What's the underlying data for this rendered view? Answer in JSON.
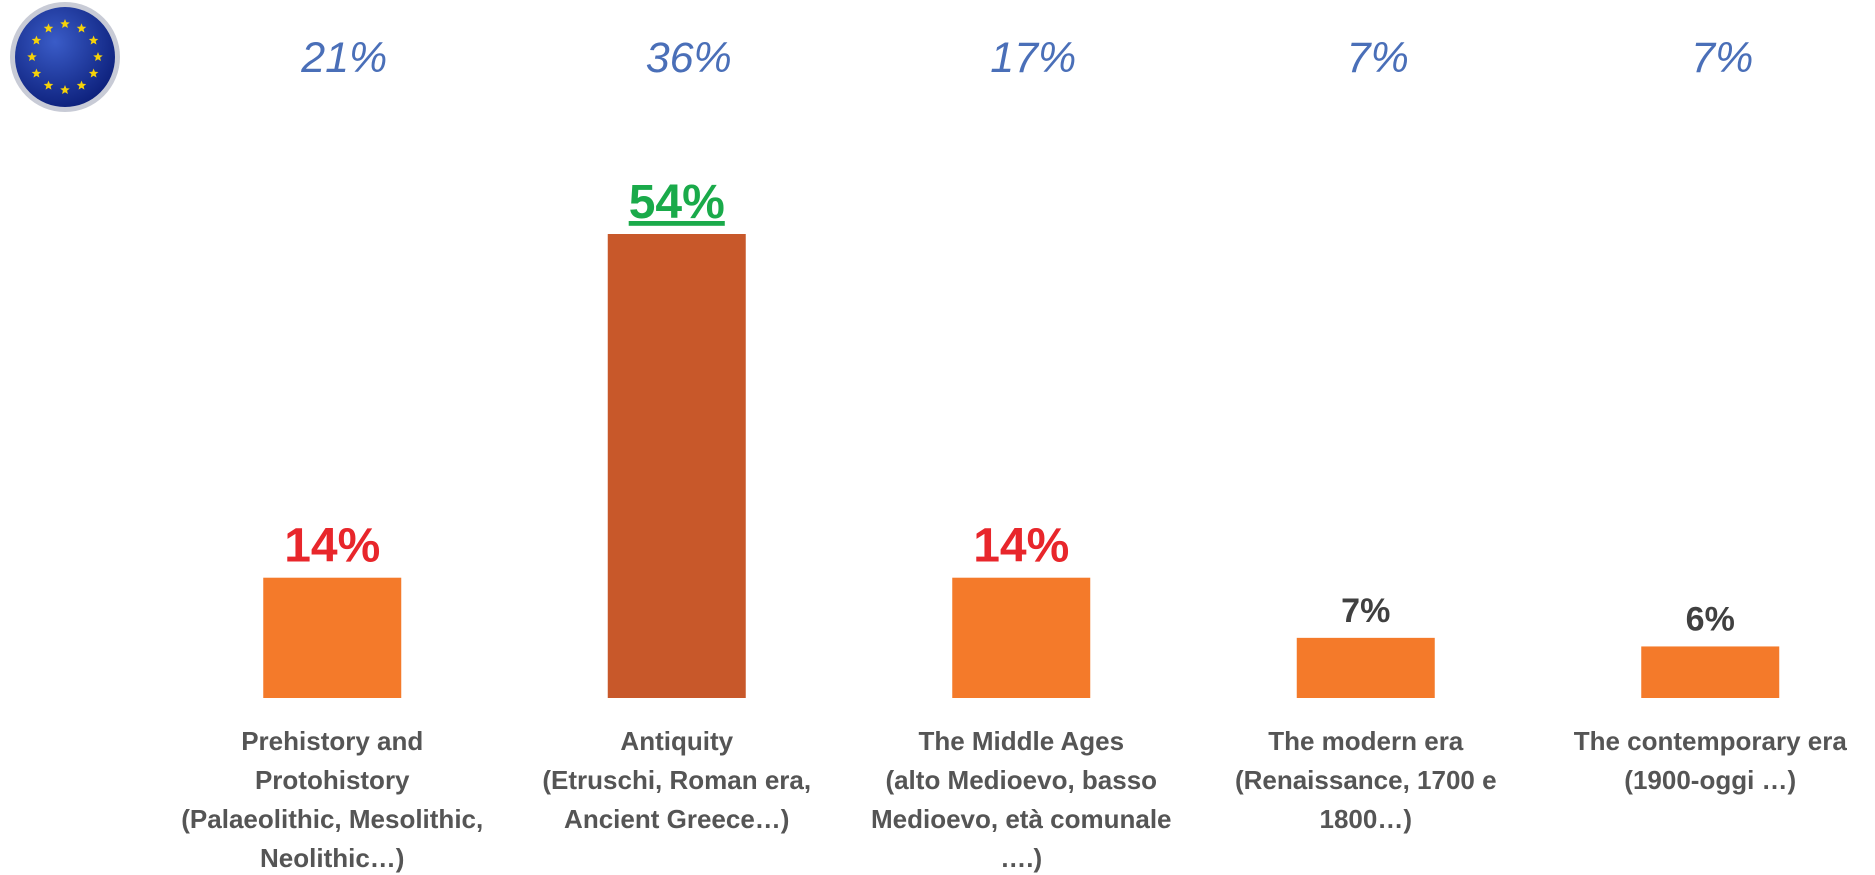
{
  "chart_data": {
    "type": "bar",
    "categories": [
      "Prehistory and\nProtohistory\n(Palaeolithic, Mesolithic,\nNeolithic…)",
      "Antiquity\n(Etruschi, Roman era,\nAncient Greece…)",
      "The Middle Ages\n(alto Medioevo, basso\nMedioevo, età comunale\n….)",
      "The modern era\n(Renaissance, 1700 e\n1800…)",
      "The contemporary era\n(1900-oggi …)"
    ],
    "values": [
      14,
      54,
      14,
      7,
      6
    ],
    "value_labels": [
      "14%",
      "54%",
      "14%",
      "7%",
      "6%"
    ],
    "colors": [
      "#f47a2a",
      "#c8582a",
      "#f47a2a",
      "#f47a2a",
      "#f47a2a"
    ],
    "label_colors": [
      "#e8262b",
      "#1aaa4a",
      "#e8262b",
      "#404040",
      "#404040"
    ],
    "underline": [
      false,
      true,
      false,
      false,
      false
    ],
    "comparison": {
      "values": [
        21,
        36,
        17,
        7,
        7
      ],
      "value_labels": [
        "21%",
        "36%",
        "17%",
        "7%",
        "7%"
      ],
      "color": "#4a6fb8"
    }
  }
}
